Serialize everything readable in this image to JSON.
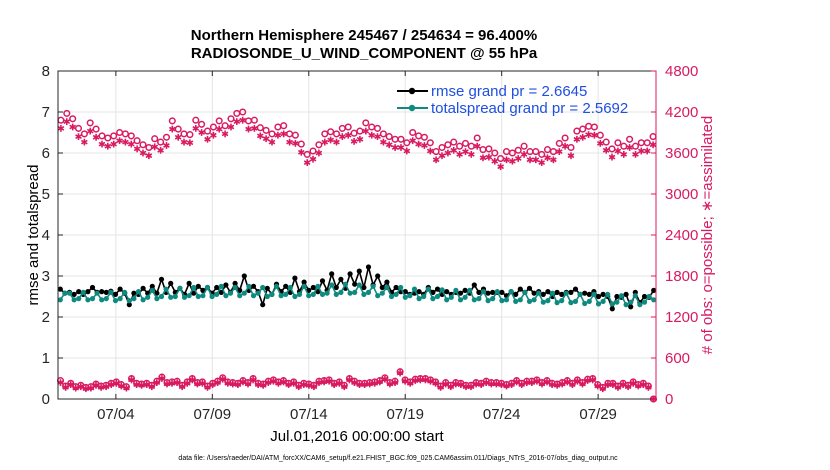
{
  "chart_data": {
    "type": "line",
    "title_line1": "Northern Hemisphere 245467 / 254634 = 96.400%",
    "title_line2": "RADIOSONDE_U_WIND_COMPONENT @ 55 hPa",
    "xlabel": "Jul.01,2016 00:00:00 start",
    "ylabel_left": "rmse and totalspread",
    "ylabel_right": "# of obs: o=possible; ∗=assimilated",
    "ylim_left": [
      0,
      8
    ],
    "ylim_right": [
      0,
      4800
    ],
    "yticks_left": [
      "0",
      "1",
      "2",
      "3",
      "4",
      "5",
      "6",
      "7",
      "8"
    ],
    "yticks_right": [
      "0",
      "600",
      "1200",
      "1800",
      "2400",
      "3000",
      "3600",
      "4200",
      "4800"
    ],
    "xticks": [
      {
        "label": "07/04",
        "day": 4
      },
      {
        "label": "07/09",
        "day": 9
      },
      {
        "label": "07/14",
        "day": 14
      },
      {
        "label": "07/19",
        "day": 19
      },
      {
        "label": "07/24",
        "day": 24
      },
      {
        "label": "07/29",
        "day": 29
      }
    ],
    "xlim_days": [
      1,
      32
    ],
    "times_per_day": 4,
    "legend": [
      {
        "label": "rmse grand pr = 2.6645",
        "color": "#000000"
      },
      {
        "label": "totalspread grand pr = 2.5692",
        "color": "#0f8a80"
      }
    ],
    "series": [
      {
        "name": "rmse",
        "axis": "left",
        "color": "#000000",
        "values": [
          2.68,
          2.58,
          2.6,
          2.55,
          2.62,
          2.55,
          2.62,
          2.72,
          2.6,
          2.62,
          2.6,
          2.63,
          2.55,
          2.68,
          2.58,
          2.3,
          2.58,
          2.55,
          2.7,
          2.58,
          2.75,
          2.58,
          2.92,
          2.6,
          2.82,
          2.6,
          2.7,
          2.55,
          2.82,
          2.58,
          2.75,
          2.65,
          2.72,
          2.58,
          2.72,
          2.6,
          2.78,
          2.6,
          2.82,
          2.65,
          3.0,
          2.65,
          2.75,
          2.62,
          2.3,
          2.7,
          2.55,
          2.8,
          2.62,
          2.75,
          2.6,
          2.95,
          2.62,
          2.85,
          2.65,
          2.72,
          2.62,
          2.88,
          2.65,
          3.05,
          2.72,
          2.92,
          2.7,
          3.05,
          2.8,
          3.12,
          2.72,
          3.22,
          2.78,
          3.0,
          2.72,
          2.85,
          2.6,
          2.72,
          2.62,
          2.62,
          2.55,
          2.58,
          2.62,
          2.55,
          2.72,
          2.6,
          2.68,
          2.55,
          2.62,
          2.55,
          2.6,
          2.58,
          2.65,
          2.58,
          2.78,
          2.6,
          2.68,
          2.58,
          2.6,
          2.6,
          2.6,
          2.52,
          2.62,
          2.55,
          2.68,
          2.6,
          2.7,
          2.58,
          2.62,
          2.55,
          2.62,
          2.5,
          2.6,
          2.55,
          2.6,
          2.6,
          2.68,
          2.55,
          2.58,
          2.55,
          2.62,
          2.5,
          2.55,
          2.5,
          2.2,
          2.5,
          2.48,
          2.55,
          2.25,
          2.6,
          2.35,
          2.5,
          2.48,
          2.65
        ]
      },
      {
        "name": "totalspread",
        "axis": "left",
        "color": "#0f8a80",
        "values": [
          2.42,
          2.58,
          2.58,
          2.42,
          2.45,
          2.6,
          2.42,
          2.45,
          2.58,
          2.42,
          2.45,
          2.6,
          2.4,
          2.45,
          2.6,
          2.4,
          2.45,
          2.62,
          2.42,
          2.48,
          2.65,
          2.45,
          2.5,
          2.68,
          2.48,
          2.5,
          2.7,
          2.48,
          2.52,
          2.72,
          2.5,
          2.52,
          2.72,
          2.5,
          2.55,
          2.75,
          2.52,
          2.58,
          2.72,
          2.52,
          2.58,
          2.75,
          2.52,
          2.58,
          2.72,
          2.5,
          2.55,
          2.75,
          2.52,
          2.55,
          2.72,
          2.5,
          2.55,
          2.75,
          2.52,
          2.55,
          2.75,
          2.55,
          2.58,
          2.78,
          2.55,
          2.6,
          2.8,
          2.58,
          2.6,
          2.78,
          2.55,
          2.6,
          2.75,
          2.52,
          2.58,
          2.72,
          2.5,
          2.55,
          2.72,
          2.48,
          2.52,
          2.68,
          2.45,
          2.5,
          2.68,
          2.45,
          2.5,
          2.66,
          2.42,
          2.48,
          2.65,
          2.42,
          2.48,
          2.65,
          2.42,
          2.45,
          2.62,
          2.4,
          2.45,
          2.62,
          2.4,
          2.42,
          2.62,
          2.38,
          2.42,
          2.6,
          2.38,
          2.42,
          2.58,
          2.36,
          2.4,
          2.58,
          2.35,
          2.4,
          2.58,
          2.35,
          2.38,
          2.55,
          2.33,
          2.38,
          2.55,
          2.32,
          2.38,
          2.55,
          2.32,
          2.36,
          2.52,
          2.3,
          2.36,
          2.52,
          2.3,
          2.36,
          2.5,
          2.42
        ]
      },
      {
        "name": "obs possible (o)",
        "axis": "right",
        "color": "#d81a60",
        "marker": "circle",
        "values": [
          4080,
          4180,
          4100,
          3960,
          3880,
          4040,
          3950,
          3850,
          3820,
          3850,
          3900,
          3880,
          3850,
          3780,
          3720,
          3680,
          3810,
          3760,
          3830,
          4070,
          3950,
          3880,
          3870,
          4080,
          4020,
          3920,
          3980,
          4070,
          4000,
          4100,
          4180,
          4200,
          4070,
          4080,
          3970,
          3930,
          3880,
          3980,
          4000,
          3880,
          3860,
          3730,
          3580,
          3630,
          3720,
          3880,
          3910,
          3880,
          3960,
          3980,
          3890,
          3920,
          4040,
          3980,
          3960,
          3880,
          3840,
          3800,
          3800,
          3750,
          3900,
          3850,
          3830,
          3750,
          3620,
          3680,
          3720,
          3760,
          3700,
          3740,
          3700,
          3820,
          3650,
          3660,
          3600,
          3520,
          3620,
          3600,
          3640,
          3700,
          3620,
          3620,
          3580,
          3650,
          3620,
          3740,
          3820,
          3680,
          3920,
          3950,
          3990,
          3980,
          3860,
          3760,
          3660,
          3750,
          3700,
          3800,
          3700,
          3750,
          3750,
          3840
        ]
      },
      {
        "name": "obs assimilated (*)",
        "axis": "right",
        "color": "#d81a60",
        "marker": "asterisk",
        "values": [
          3960,
          4060,
          3980,
          3840,
          3760,
          3920,
          3830,
          3730,
          3700,
          3730,
          3780,
          3760,
          3730,
          3660,
          3600,
          3560,
          3690,
          3640,
          3710,
          3950,
          3830,
          3760,
          3750,
          3960,
          3900,
          3800,
          3860,
          3950,
          3880,
          3980,
          4060,
          4080,
          3950,
          3960,
          3850,
          3810,
          3760,
          3860,
          3880,
          3760,
          3740,
          3610,
          3460,
          3510,
          3600,
          3760,
          3790,
          3760,
          3840,
          3860,
          3770,
          3800,
          3920,
          3860,
          3840,
          3760,
          3720,
          3680,
          3680,
          3630,
          3780,
          3730,
          3710,
          3630,
          3500,
          3560,
          3600,
          3640,
          3580,
          3620,
          3580,
          3700,
          3530,
          3540,
          3480,
          3400,
          3500,
          3480,
          3520,
          3580,
          3500,
          3500,
          3460,
          3530,
          3500,
          3620,
          3700,
          3560,
          3800,
          3830,
          3870,
          3860,
          3740,
          3640,
          3540,
          3630,
          3580,
          3680,
          3580,
          3630,
          3630,
          3720
        ]
      },
      {
        "name": "low obs possible (o)",
        "axis": "right",
        "color": "#d81a60",
        "marker": "circle",
        "values": [
          270,
          190,
          230,
          180,
          200,
          170,
          180,
          220,
          190,
          200,
          230,
          250,
          210,
          180,
          300,
          230,
          220,
          230,
          200,
          260,
          320,
          240,
          250,
          260,
          200,
          250,
          300,
          240,
          250,
          190,
          230,
          260,
          310,
          250,
          240,
          230,
          270,
          240,
          300,
          230,
          220,
          260,
          280,
          250,
          270,
          230,
          250,
          200,
          230,
          220,
          200,
          260,
          270,
          280,
          230,
          250,
          200,
          300,
          260,
          230,
          230,
          240,
          250,
          270,
          310,
          240,
          260,
          400,
          280,
          250,
          290,
          300,
          300,
          280,
          250,
          190,
          240,
          200,
          240,
          230,
          200,
          200,
          240,
          230,
          260,
          240,
          240,
          230,
          210,
          230,
          270,
          230,
          260,
          260,
          280,
          240,
          270,
          230,
          220,
          240,
          270,
          230,
          280,
          240,
          290,
          300,
          210,
          170,
          230,
          230,
          190,
          230,
          200,
          250,
          210,
          230,
          190,
          0
        ]
      },
      {
        "name": "low obs assimilated (*)",
        "axis": "right",
        "color": "#d81a60",
        "marker": "asterisk",
        "values": [
          240,
          170,
          210,
          160,
          180,
          150,
          160,
          200,
          170,
          180,
          210,
          230,
          190,
          160,
          280,
          210,
          200,
          210,
          180,
          240,
          300,
          220,
          230,
          240,
          180,
          230,
          280,
          220,
          230,
          170,
          210,
          240,
          290,
          230,
          220,
          210,
          250,
          220,
          280,
          210,
          200,
          240,
          260,
          230,
          250,
          210,
          230,
          180,
          210,
          200,
          180,
          240,
          250,
          260,
          210,
          230,
          180,
          280,
          240,
          210,
          210,
          220,
          230,
          250,
          290,
          220,
          240,
          380,
          260,
          230,
          270,
          280,
          280,
          260,
          230,
          170,
          220,
          180,
          220,
          210,
          180,
          180,
          220,
          210,
          240,
          220,
          220,
          210,
          190,
          210,
          250,
          210,
          240,
          240,
          260,
          220,
          250,
          210,
          200,
          220,
          250,
          210,
          260,
          220,
          270,
          280,
          190,
          150,
          210,
          210,
          170,
          210,
          180,
          230,
          190,
          210,
          170,
          0
        ]
      }
    ]
  },
  "footnote": "data file: /Users/raeder/DAI/ATM_forcXX/CAM6_setup/f.e21.FHIST_BGC.f09_025.CAM6assim.011/Diags_NTrS_2016-07/obs_diag_output.nc"
}
